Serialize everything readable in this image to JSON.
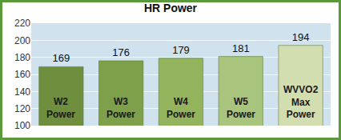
{
  "chart_data": {
    "type": "bar",
    "title": "HR Power",
    "categories": [
      "W2 Power",
      "W3 Power",
      "W4 Power",
      "W5 Power",
      "WVVO2 Max Power"
    ],
    "values": [
      169,
      176,
      179,
      181,
      194
    ],
    "colors": [
      "#6f8f3e",
      "#7fa04a",
      "#93b35c",
      "#a9c47c",
      "#d2deb0"
    ],
    "ylim": [
      100,
      220
    ],
    "yticks": [
      100,
      120,
      140,
      160,
      180,
      200,
      220
    ],
    "grid": true,
    "data_labels": true,
    "tick_labels": "y"
  }
}
